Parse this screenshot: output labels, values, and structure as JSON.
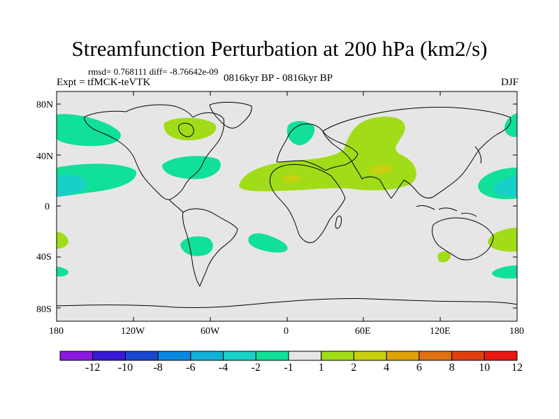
{
  "title": "Streamfunction Perturbation at 200 hPa (km2/s)",
  "stats": "rmsd= 0.768111 diff= -8.76642e-09",
  "experiment": "Expt = tfMCK-teVTK",
  "period": "0816kyr BP - 0816kyr BP",
  "season": "DJF",
  "lat_ticks": [
    "80N",
    "40N",
    "0",
    "40S",
    "80S"
  ],
  "lon_ticks": [
    "180",
    "120W",
    "60W",
    "0",
    "60E",
    "120E",
    "180"
  ],
  "colorbar": {
    "labels": [
      "-12",
      "-10",
      "-8",
      "-6",
      "-4",
      "-2",
      "-1",
      "1",
      "2",
      "4",
      "6",
      "8",
      "10",
      "12"
    ],
    "colors": [
      "#8a18e0",
      "#3a18d8",
      "#1848d0",
      "#0a88e0",
      "#10b0d8",
      "#18d0c8",
      "#10e098",
      "#e6e6e6",
      "#a0dc18",
      "#c8d010",
      "#e0a008",
      "#e07010",
      "#e04010",
      "#e81810"
    ]
  },
  "map": {
    "background": "#e6e6e6",
    "anomalies": [
      {
        "level": "-2",
        "color": "#10e098",
        "region": "North Pacific east of dateline"
      },
      {
        "level": "-4",
        "color": "#18d0c8",
        "region": "Tropical central Pacific"
      },
      {
        "level": "-2",
        "color": "#10e098",
        "region": "Tropical central Pacific"
      },
      {
        "level": "2",
        "color": "#a0dc18",
        "region": "Hudson Bay"
      },
      {
        "level": "-2",
        "color": "#10e098",
        "region": "Eastern North America / Atlantic"
      },
      {
        "level": "-2",
        "color": "#10e098",
        "region": "Southern South America"
      },
      {
        "level": "-2",
        "color": "#10e098",
        "region": "South Atlantic"
      },
      {
        "level": "-2",
        "color": "#10e098",
        "region": "Scandinavia"
      },
      {
        "level": "2",
        "color": "#a0dc18",
        "region": "North Africa to Asia"
      },
      {
        "level": "4",
        "color": "#c8d010",
        "region": "Sahara"
      },
      {
        "level": "4",
        "color": "#c8d010",
        "region": "Central Asia"
      },
      {
        "level": "-4",
        "color": "#18d0c8",
        "region": "Western Pacific"
      },
      {
        "level": "2",
        "color": "#a0dc18",
        "region": "Southwest Pacific"
      },
      {
        "level": "-2",
        "color": "#10e098",
        "region": "South Pacific"
      }
    ]
  }
}
